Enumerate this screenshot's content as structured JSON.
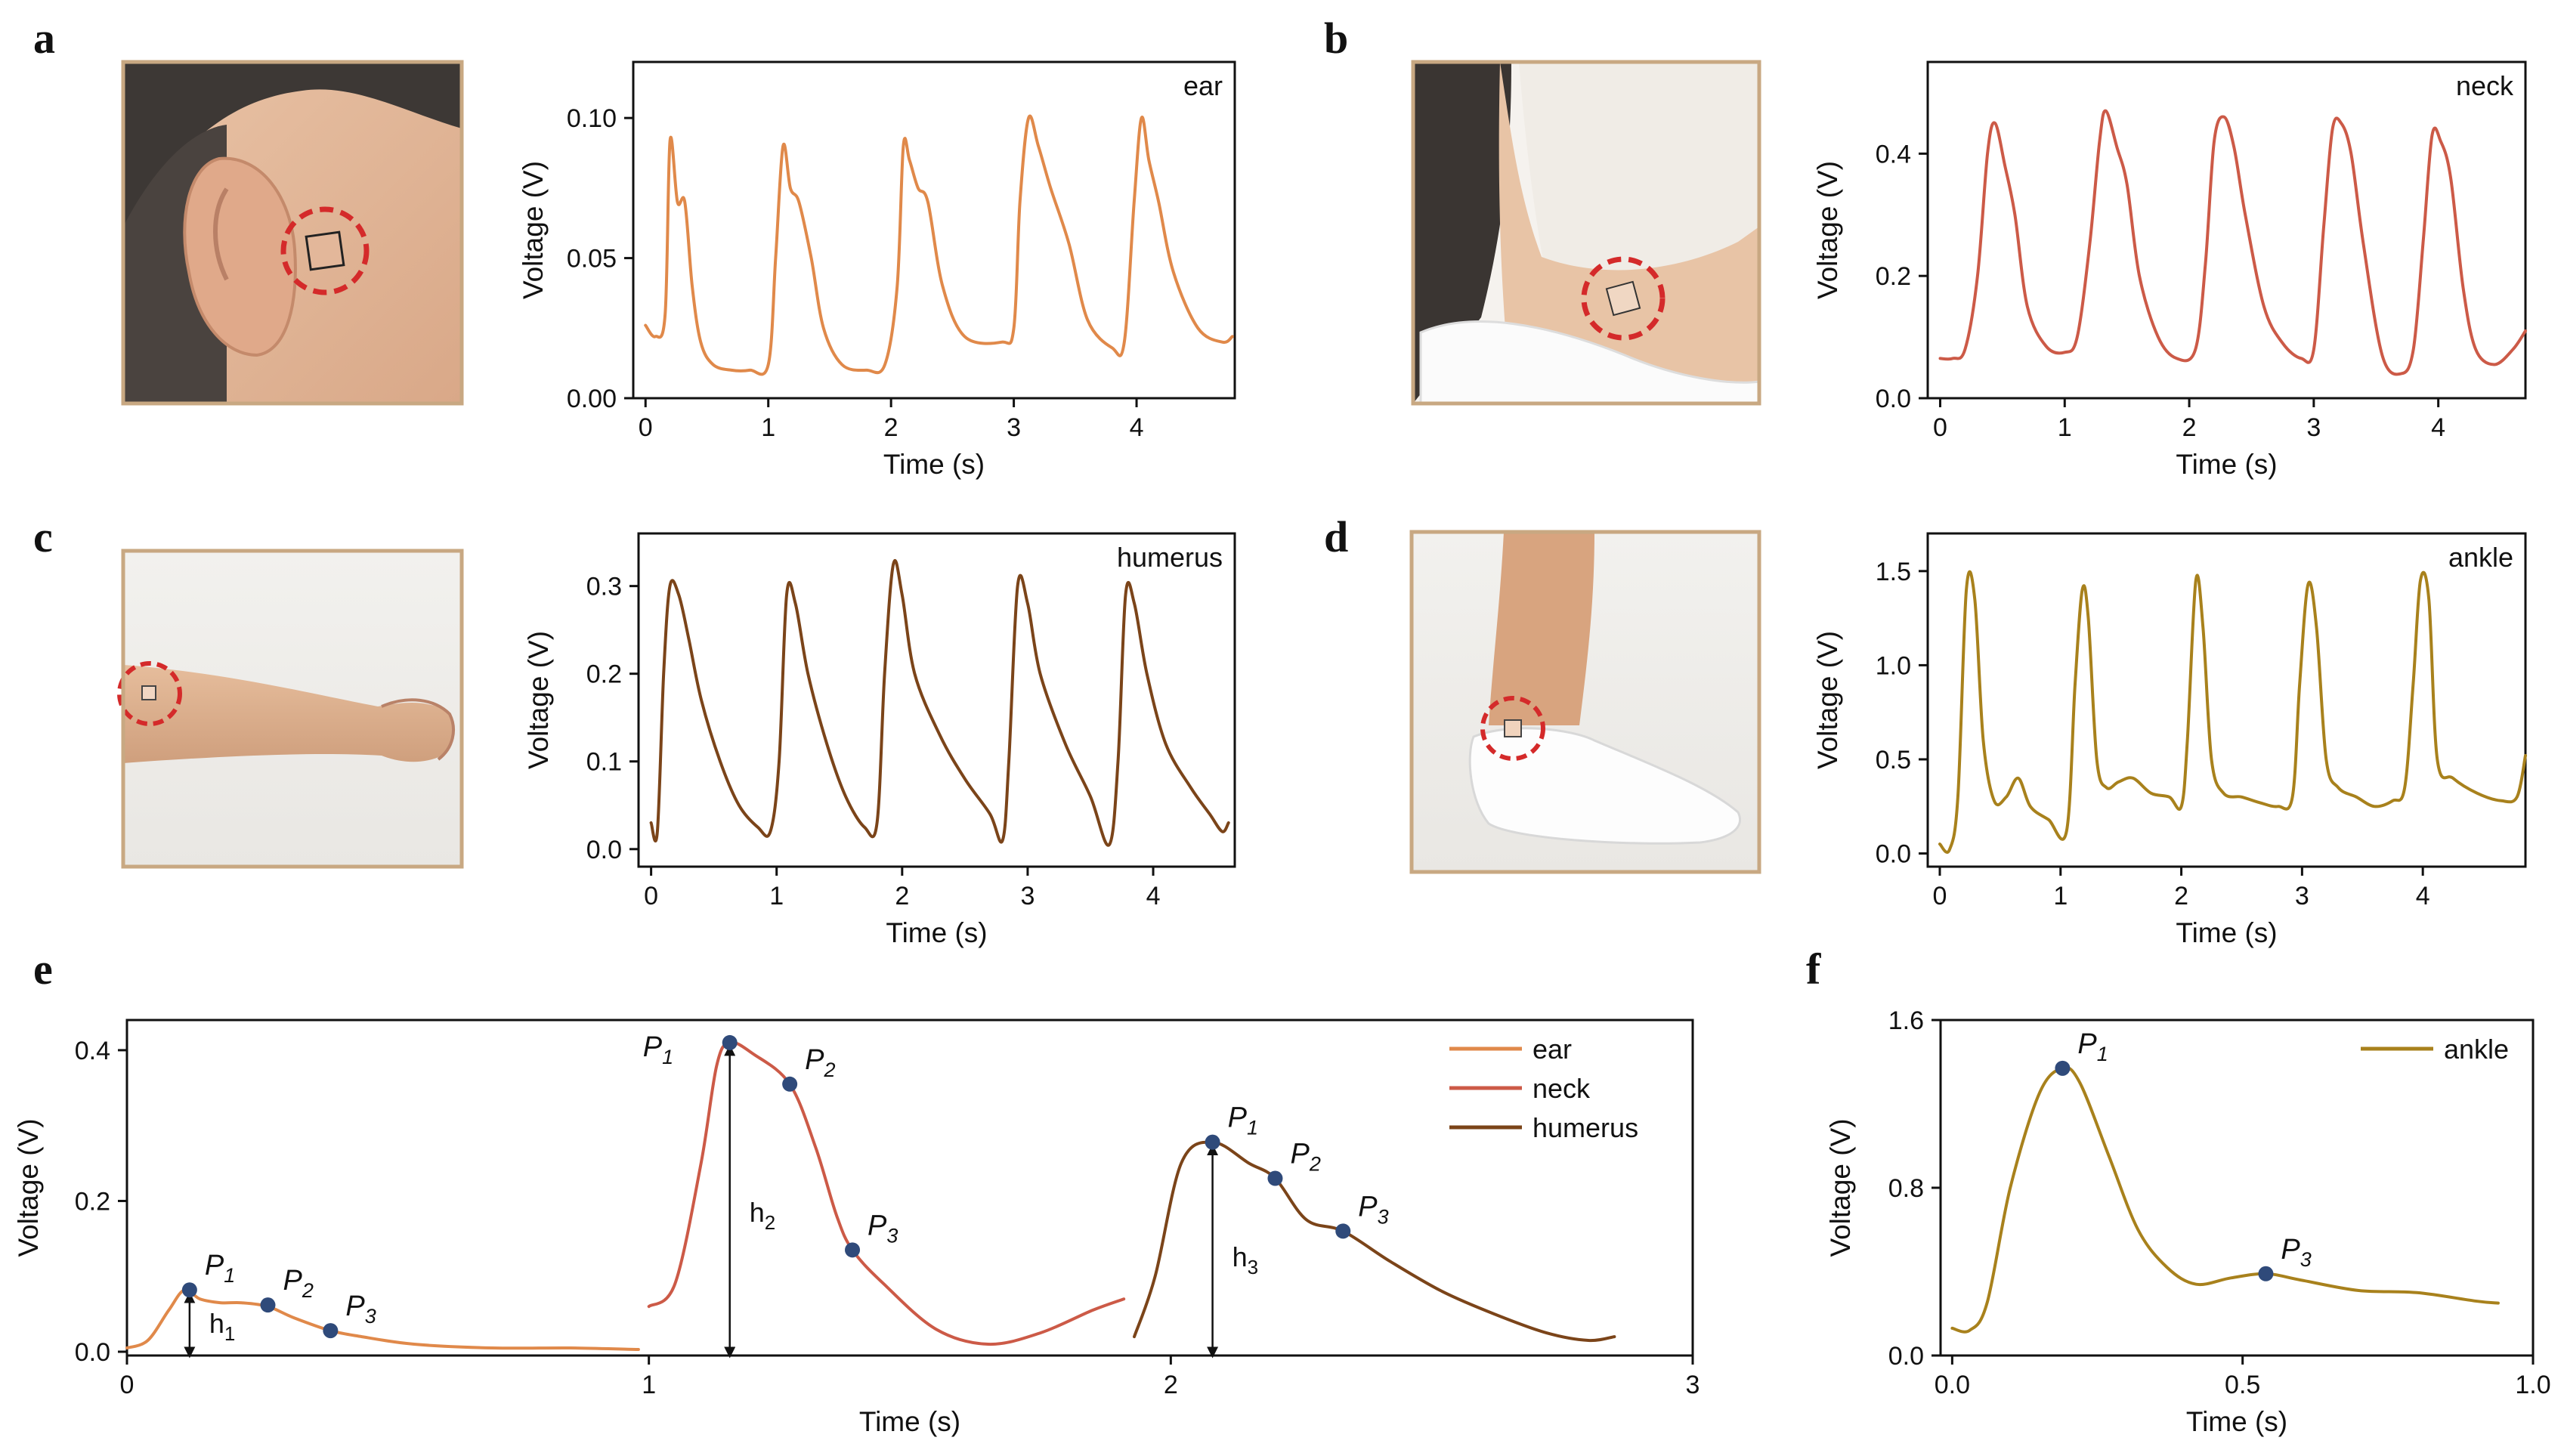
{
  "panels": {
    "a": "a",
    "b": "b",
    "c": "c",
    "d": "d",
    "e": "e",
    "f": "f"
  },
  "colors": {
    "ear": "#e0894a",
    "neck": "#cc5a47",
    "humerus": "#7b4419",
    "ankle": "#a8811c",
    "marker": "#2f4a7a",
    "photo_frame": "#c8a882",
    "circle": "#d42a2a"
  },
  "photos": [
    {
      "panel": "a",
      "subject": "ear"
    },
    {
      "panel": "b",
      "subject": "neck"
    },
    {
      "panel": "c",
      "subject": "arm"
    },
    {
      "panel": "d",
      "subject": "ankle"
    }
  ],
  "chart_data": [
    {
      "panel": "a",
      "type": "line",
      "inset_label": "ear",
      "xlabel": "Time (s)",
      "ylabel": "Voltage (V)",
      "xlim": [
        -0.1,
        4.8
      ],
      "ylim": [
        0.0,
        0.12
      ],
      "xticks": [
        0,
        1,
        2,
        3,
        4
      ],
      "xtick_labels": [
        "0",
        "1",
        "2",
        "3",
        "4"
      ],
      "yticks": [
        0.0,
        0.05,
        0.1
      ],
      "ytick_labels": [
        "0.00",
        "0.05",
        "0.10"
      ],
      "series": [
        {
          "color": "#e0894a",
          "x": [
            0.0,
            0.08,
            0.16,
            0.2,
            0.26,
            0.32,
            0.38,
            0.45,
            0.55,
            0.7,
            0.85,
            1.0,
            1.06,
            1.12,
            1.18,
            1.25,
            1.35,
            1.45,
            1.6,
            1.8,
            1.95,
            2.05,
            2.1,
            2.15,
            2.22,
            2.3,
            2.42,
            2.6,
            2.9,
            3.0,
            3.05,
            3.12,
            3.2,
            3.3,
            3.45,
            3.6,
            3.8,
            3.9,
            3.98,
            4.04,
            4.1,
            4.18,
            4.3,
            4.5,
            4.7,
            4.78
          ],
          "y": [
            0.026,
            0.022,
            0.03,
            0.092,
            0.07,
            0.07,
            0.04,
            0.02,
            0.012,
            0.01,
            0.01,
            0.012,
            0.05,
            0.09,
            0.075,
            0.07,
            0.05,
            0.025,
            0.012,
            0.01,
            0.012,
            0.04,
            0.09,
            0.085,
            0.075,
            0.07,
            0.04,
            0.022,
            0.02,
            0.025,
            0.07,
            0.1,
            0.09,
            0.075,
            0.055,
            0.028,
            0.018,
            0.02,
            0.07,
            0.1,
            0.085,
            0.07,
            0.045,
            0.025,
            0.02,
            0.022
          ]
        }
      ]
    },
    {
      "panel": "b",
      "type": "line",
      "inset_label": "neck",
      "xlabel": "Time (s)",
      "ylabel": "Voltage (V)",
      "xlim": [
        -0.1,
        4.7
      ],
      "ylim": [
        0.0,
        0.55
      ],
      "xticks": [
        0,
        1,
        2,
        3,
        4
      ],
      "xtick_labels": [
        "0",
        "1",
        "2",
        "3",
        "4"
      ],
      "yticks": [
        0.0,
        0.2,
        0.4
      ],
      "ytick_labels": [
        "0.0",
        "0.2",
        "0.4"
      ],
      "series": [
        {
          "color": "#cc5a47",
          "x": [
            0.0,
            0.1,
            0.2,
            0.3,
            0.38,
            0.44,
            0.52,
            0.6,
            0.7,
            0.85,
            1.0,
            1.1,
            1.2,
            1.28,
            1.33,
            1.42,
            1.5,
            1.6,
            1.75,
            1.9,
            2.05,
            2.13,
            2.2,
            2.28,
            2.36,
            2.45,
            2.6,
            2.75,
            2.9,
            3.0,
            3.08,
            3.15,
            3.22,
            3.3,
            3.4,
            3.55,
            3.7,
            3.8,
            3.88,
            3.95,
            4.02,
            4.1,
            4.2,
            4.3,
            4.45,
            4.6,
            4.7
          ],
          "y": [
            0.065,
            0.065,
            0.08,
            0.2,
            0.4,
            0.45,
            0.38,
            0.3,
            0.15,
            0.085,
            0.075,
            0.1,
            0.25,
            0.42,
            0.47,
            0.41,
            0.35,
            0.2,
            0.1,
            0.065,
            0.08,
            0.22,
            0.42,
            0.46,
            0.41,
            0.3,
            0.15,
            0.09,
            0.065,
            0.08,
            0.28,
            0.44,
            0.45,
            0.4,
            0.25,
            0.07,
            0.04,
            0.08,
            0.26,
            0.43,
            0.42,
            0.36,
            0.18,
            0.08,
            0.055,
            0.08,
            0.11
          ]
        }
      ]
    },
    {
      "panel": "c",
      "type": "line",
      "inset_label": "humerus",
      "xlabel": "Time (s)",
      "ylabel": "Voltage (V)",
      "xlim": [
        -0.1,
        4.65
      ],
      "ylim": [
        -0.02,
        0.36
      ],
      "xticks": [
        0,
        1,
        2,
        3,
        4
      ],
      "xtick_labels": [
        "0",
        "1",
        "2",
        "3",
        "4"
      ],
      "yticks": [
        0.0,
        0.1,
        0.2,
        0.3
      ],
      "ytick_labels": [
        "0.0",
        "0.1",
        "0.2",
        "0.3"
      ],
      "series": [
        {
          "color": "#7b4419",
          "x": [
            0.0,
            0.05,
            0.1,
            0.15,
            0.22,
            0.3,
            0.4,
            0.55,
            0.7,
            0.85,
            0.95,
            1.02,
            1.08,
            1.15,
            1.25,
            1.4,
            1.55,
            1.7,
            1.8,
            1.86,
            1.93,
            2.0,
            2.1,
            2.3,
            2.5,
            2.7,
            2.8,
            2.85,
            2.92,
            3.0,
            3.1,
            3.3,
            3.5,
            3.65,
            3.72,
            3.78,
            3.85,
            3.95,
            4.1,
            4.3,
            4.45,
            4.55,
            4.6
          ],
          "y": [
            0.03,
            0.02,
            0.2,
            0.3,
            0.29,
            0.24,
            0.17,
            0.1,
            0.05,
            0.025,
            0.02,
            0.1,
            0.29,
            0.28,
            0.2,
            0.12,
            0.06,
            0.025,
            0.03,
            0.2,
            0.325,
            0.29,
            0.2,
            0.13,
            0.08,
            0.04,
            0.01,
            0.1,
            0.3,
            0.28,
            0.2,
            0.12,
            0.06,
            0.005,
            0.1,
            0.29,
            0.28,
            0.2,
            0.12,
            0.07,
            0.04,
            0.02,
            0.03
          ]
        }
      ]
    },
    {
      "panel": "d",
      "type": "line",
      "inset_label": "ankle",
      "xlabel": "Time (s)",
      "ylabel": "Voltage (V)",
      "xlim": [
        -0.1,
        4.85
      ],
      "ylim": [
        -0.07,
        1.7
      ],
      "xticks": [
        0,
        1,
        2,
        3,
        4
      ],
      "xtick_labels": [
        "0",
        "1",
        "2",
        "3",
        "4"
      ],
      "yticks": [
        0.0,
        0.5,
        1.0,
        1.5
      ],
      "ytick_labels": [
        "0.0",
        "0.5",
        "1.0",
        "1.5"
      ],
      "series": [
        {
          "color": "#a8811c",
          "x": [
            0.0,
            0.08,
            0.15,
            0.22,
            0.29,
            0.36,
            0.45,
            0.55,
            0.65,
            0.75,
            0.9,
            1.05,
            1.12,
            1.18,
            1.23,
            1.3,
            1.38,
            1.48,
            1.6,
            1.75,
            1.9,
            2.0,
            2.05,
            2.12,
            2.18,
            2.25,
            2.35,
            2.5,
            2.65,
            2.8,
            2.92,
            2.98,
            3.05,
            3.12,
            3.2,
            3.3,
            3.45,
            3.6,
            3.75,
            3.85,
            3.92,
            3.98,
            4.05,
            4.12,
            4.25,
            4.45,
            4.65,
            4.78,
            4.85
          ],
          "y": [
            0.05,
            0.02,
            0.3,
            1.4,
            1.35,
            0.6,
            0.28,
            0.3,
            0.4,
            0.25,
            0.18,
            0.12,
            0.9,
            1.4,
            1.25,
            0.5,
            0.35,
            0.38,
            0.4,
            0.32,
            0.3,
            0.25,
            0.6,
            1.45,
            1.2,
            0.5,
            0.32,
            0.3,
            0.27,
            0.25,
            0.3,
            0.9,
            1.43,
            1.2,
            0.5,
            0.35,
            0.3,
            0.25,
            0.28,
            0.35,
            0.9,
            1.45,
            1.35,
            0.5,
            0.4,
            0.32,
            0.28,
            0.3,
            0.52
          ]
        }
      ]
    },
    {
      "panel": "e",
      "type": "line",
      "xlabel": "Time (s)",
      "ylabel": "Voltage (V)",
      "xlim": [
        0,
        3
      ],
      "ylim": [
        -0.005,
        0.44
      ],
      "xticks": [
        0,
        1,
        2,
        3
      ],
      "xtick_labels": [
        "0",
        "1",
        "2",
        "3"
      ],
      "yticks": [
        0.0,
        0.2,
        0.4
      ],
      "ytick_labels": [
        "0.0",
        "0.2",
        "0.4"
      ],
      "legend_position": "top-right",
      "legend": [
        "ear",
        "neck",
        "humerus"
      ],
      "series": [
        {
          "name": "ear",
          "color": "#e0894a",
          "x": [
            0.0,
            0.04,
            0.08,
            0.11,
            0.14,
            0.18,
            0.22,
            0.27,
            0.32,
            0.39,
            0.45,
            0.55,
            0.7,
            0.85,
            0.98
          ],
          "y": [
            0.005,
            0.015,
            0.055,
            0.082,
            0.07,
            0.065,
            0.065,
            0.06,
            0.045,
            0.028,
            0.02,
            0.01,
            0.005,
            0.005,
            0.003
          ]
        },
        {
          "name": "neck",
          "color": "#cc5a47",
          "x": [
            1.0,
            1.05,
            1.1,
            1.13,
            1.155,
            1.2,
            1.27,
            1.32,
            1.36,
            1.39,
            1.45,
            1.55,
            1.65,
            1.75,
            1.85,
            1.91
          ],
          "y": [
            0.06,
            0.09,
            0.25,
            0.38,
            0.41,
            0.395,
            0.355,
            0.27,
            0.18,
            0.135,
            0.09,
            0.03,
            0.01,
            0.025,
            0.055,
            0.07
          ]
        },
        {
          "name": "humerus",
          "color": "#7b4419",
          "x": [
            1.93,
            1.97,
            2.02,
            2.08,
            2.15,
            2.2,
            2.26,
            2.33,
            2.42,
            2.52,
            2.62,
            2.72,
            2.8,
            2.85
          ],
          "y": [
            0.02,
            0.1,
            0.25,
            0.278,
            0.25,
            0.23,
            0.175,
            0.16,
            0.12,
            0.08,
            0.05,
            0.025,
            0.015,
            0.02
          ]
        }
      ],
      "markers": [
        {
          "series": "ear",
          "label": "P1",
          "x": 0.12,
          "y": 0.082
        },
        {
          "series": "ear",
          "label": "P2",
          "x": 0.27,
          "y": 0.062
        },
        {
          "series": "ear",
          "label": "P3",
          "x": 0.39,
          "y": 0.028
        },
        {
          "series": "neck",
          "label": "P1",
          "x": 1.155,
          "y": 0.41
        },
        {
          "series": "neck",
          "label": "P2",
          "x": 1.27,
          "y": 0.355
        },
        {
          "series": "neck",
          "label": "P3",
          "x": 1.39,
          "y": 0.135
        },
        {
          "series": "humerus",
          "label": "P1",
          "x": 2.08,
          "y": 0.278
        },
        {
          "series": "humerus",
          "label": "P2",
          "x": 2.2,
          "y": 0.23
        },
        {
          "series": "humerus",
          "label": "P3",
          "x": 2.33,
          "y": 0.16
        }
      ],
      "heights": [
        {
          "label": "h1",
          "x": 0.12,
          "y": 0.082
        },
        {
          "label": "h2",
          "x": 1.155,
          "y": 0.41
        },
        {
          "label": "h3",
          "x": 2.08,
          "y": 0.278
        }
      ]
    },
    {
      "panel": "f",
      "type": "line",
      "xlabel": "Time (s)",
      "ylabel": "Voltage (V)",
      "xlim": [
        -0.02,
        1.0
      ],
      "ylim": [
        0.0,
        1.6
      ],
      "xticks": [
        0.0,
        0.5,
        1.0
      ],
      "xtick_labels": [
        "0.0",
        "0.5",
        "1.0"
      ],
      "yticks": [
        0.0,
        0.8,
        1.6
      ],
      "ytick_labels": [
        "0.0",
        "0.8",
        "1.6"
      ],
      "legend_position": "top-right",
      "legend": [
        "ankle"
      ],
      "series": [
        {
          "name": "ankle",
          "color": "#a8811c",
          "x": [
            0.0,
            0.03,
            0.06,
            0.1,
            0.15,
            0.19,
            0.22,
            0.27,
            0.32,
            0.37,
            0.42,
            0.48,
            0.54,
            0.6,
            0.7,
            0.8,
            0.9,
            0.94
          ],
          "y": [
            0.13,
            0.12,
            0.25,
            0.8,
            1.25,
            1.37,
            1.3,
            0.95,
            0.6,
            0.42,
            0.34,
            0.37,
            0.39,
            0.36,
            0.31,
            0.3,
            0.26,
            0.25
          ]
        }
      ],
      "markers": [
        {
          "series": "ankle",
          "label": "P1",
          "x": 0.19,
          "y": 1.37
        },
        {
          "series": "ankle",
          "label": "P3",
          "x": 0.54,
          "y": 0.39
        }
      ]
    }
  ]
}
